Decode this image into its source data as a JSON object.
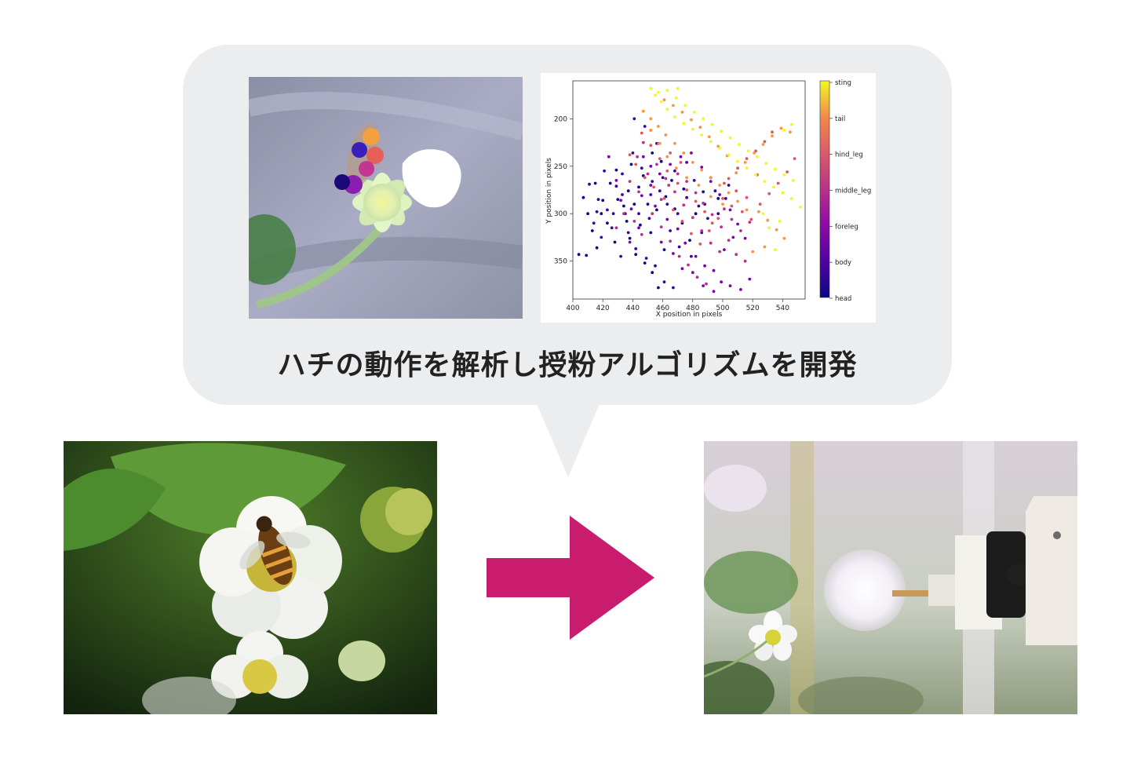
{
  "caption": "ハチの動作を解析し授粉アルゴリズムを開発",
  "colors": {
    "bubble": "#ecedee",
    "arrow": "#c91c6f"
  },
  "chart_data": {
    "type": "scatter",
    "xlabel": "X position in pixels",
    "ylabel": "Y position in pixels",
    "xlim": [
      400,
      555
    ],
    "ylim": [
      390,
      160
    ],
    "xticks": [
      400,
      420,
      440,
      460,
      480,
      500,
      520,
      540
    ],
    "yticks": [
      200,
      250,
      300,
      350
    ],
    "colorbar": {
      "colormap": "plasma",
      "labels": [
        "head",
        "body",
        "foreleg",
        "middle_leg",
        "hind_leg",
        "tail",
        "sting"
      ]
    },
    "series": [
      {
        "name": "head",
        "points": [
          [
            407,
            283
          ],
          [
            410,
            300
          ],
          [
            413,
            318
          ],
          [
            419,
            300
          ],
          [
            425,
            268
          ],
          [
            430,
            285
          ],
          [
            436,
            308
          ],
          [
            438,
            326
          ],
          [
            442,
            343
          ],
          [
            448,
            352
          ],
          [
            453,
            362
          ],
          [
            457,
            378
          ],
          [
            439,
            248
          ],
          [
            444,
            272
          ],
          [
            450,
            290
          ],
          [
            456,
            296
          ],
          [
            462,
            282
          ],
          [
            468,
            295
          ],
          [
            473,
            310
          ],
          [
            478,
            328
          ],
          [
            482,
            300
          ],
          [
            487,
            277
          ],
          [
            453,
            236
          ],
          [
            459,
            245
          ],
          [
            447,
            260
          ],
          [
            434,
            292
          ],
          [
            423,
            310
          ],
          [
            416,
            336
          ],
          [
            409,
            344
          ],
          [
            428,
            330
          ],
          [
            441,
            290
          ],
          [
            466,
            265
          ],
          [
            492,
            262
          ],
          [
            497,
            284
          ],
          [
            474,
            274
          ],
          [
            429,
            254
          ],
          [
            452,
            320
          ],
          [
            461,
            338
          ],
          [
            445,
            312
          ],
          [
            437,
            276
          ],
          [
            420,
            286
          ],
          [
            415,
            268
          ],
          [
            404,
            343
          ]
        ]
      },
      {
        "name": "body",
        "points": [
          [
            411,
            269
          ],
          [
            417,
            285
          ],
          [
            423,
            296
          ],
          [
            429,
            271
          ],
          [
            433,
            258
          ],
          [
            440,
            236
          ],
          [
            446,
            252
          ],
          [
            453,
            266
          ],
          [
            458,
            276
          ],
          [
            463,
            290
          ],
          [
            470,
            300
          ],
          [
            476,
            283
          ],
          [
            484,
            292
          ],
          [
            490,
            305
          ],
          [
            497,
            300
          ],
          [
            502,
            284
          ],
          [
            437,
            320
          ],
          [
            442,
            337
          ],
          [
            449,
            347
          ],
          [
            455,
            355
          ],
          [
            461,
            372
          ],
          [
            467,
            378
          ],
          [
            426,
            315
          ],
          [
            419,
            325
          ],
          [
            414,
            310
          ],
          [
            432,
            345
          ],
          [
            435,
            300
          ],
          [
            444,
            300
          ],
          [
            451,
            305
          ],
          [
            465,
            318
          ],
          [
            471,
            335
          ],
          [
            479,
            345
          ],
          [
            486,
            320
          ],
          [
            495,
            276
          ],
          [
            504,
            270
          ],
          [
            456,
            226
          ],
          [
            448,
            208
          ],
          [
            441,
            200
          ],
          [
            452,
            280
          ],
          [
            460,
            262
          ],
          [
            468,
            255
          ],
          [
            476,
            246
          ],
          [
            481,
            265
          ],
          [
            488,
            290
          ],
          [
            433,
            280
          ],
          [
            427,
            300
          ],
          [
            421,
            255
          ],
          [
            416,
            298
          ]
        ]
      },
      {
        "name": "foreleg",
        "points": [
          [
            432,
            286
          ],
          [
            439,
            295
          ],
          [
            446,
            281
          ],
          [
            455,
            292
          ],
          [
            463,
            306
          ],
          [
            470,
            316
          ],
          [
            475,
            331
          ],
          [
            482,
            345
          ],
          [
            488,
            355
          ],
          [
            494,
            360
          ],
          [
            499,
            372
          ],
          [
            505,
            376
          ],
          [
            512,
            380
          ],
          [
            518,
            369
          ],
          [
            452,
            270
          ],
          [
            458,
            258
          ],
          [
            465,
            248
          ],
          [
            472,
            240
          ],
          [
            479,
            236
          ],
          [
            486,
            251
          ],
          [
            492,
            266
          ],
          [
            498,
            280
          ],
          [
            505,
            296
          ],
          [
            510,
            311
          ],
          [
            515,
            326
          ],
          [
            444,
            315
          ],
          [
            438,
            330
          ],
          [
            429,
            265
          ],
          [
            424,
            240
          ],
          [
            459,
            330
          ],
          [
            467,
            342
          ],
          [
            473,
            358
          ],
          [
            480,
            362
          ],
          [
            487,
            376
          ],
          [
            494,
            382
          ],
          [
            501,
            338
          ],
          [
            507,
            325
          ],
          [
            447,
            240
          ],
          [
            452,
            250
          ]
        ]
      },
      {
        "name": "middle_leg",
        "points": [
          [
            438,
            266
          ],
          [
            444,
            277
          ],
          [
            450,
            258
          ],
          [
            456,
            248
          ],
          [
            462,
            263
          ],
          [
            468,
            277
          ],
          [
            474,
            291
          ],
          [
            480,
            304
          ],
          [
            486,
            318
          ],
          [
            492,
            331
          ],
          [
            498,
            340
          ],
          [
            453,
            300
          ],
          [
            459,
            314
          ],
          [
            465,
            329
          ],
          [
            471,
            345
          ],
          [
            477,
            354
          ],
          [
            483,
            367
          ],
          [
            489,
            374
          ],
          [
            443,
            240
          ],
          [
            447,
            225
          ],
          [
            452,
            212
          ],
          [
            441,
            308
          ],
          [
            446,
            322
          ],
          [
            501,
            295
          ],
          [
            506,
            306
          ],
          [
            512,
            318
          ],
          [
            518,
            309
          ],
          [
            470,
            258
          ],
          [
            476,
            266
          ],
          [
            482,
            278
          ],
          [
            459,
            285
          ],
          [
            464,
            270
          ],
          [
            434,
            300
          ],
          [
            429,
            315
          ],
          [
            487,
            289
          ],
          [
            493,
            301
          ],
          [
            499,
            314
          ],
          [
            504,
            328
          ],
          [
            509,
            343
          ],
          [
            515,
            350
          ]
        ]
      },
      {
        "name": "hind_leg",
        "points": [
          [
            446,
            215
          ],
          [
            452,
            228
          ],
          [
            458,
            242
          ],
          [
            463,
            255
          ],
          [
            470,
            268
          ],
          [
            476,
            275
          ],
          [
            482,
            287
          ],
          [
            488,
            298
          ],
          [
            493,
            310
          ],
          [
            500,
            284
          ],
          [
            506,
            292
          ],
          [
            513,
            298
          ],
          [
            519,
            306
          ],
          [
            525,
            290
          ],
          [
            531,
            279
          ],
          [
            537,
            268
          ],
          [
            543,
            256
          ],
          [
            548,
            242
          ],
          [
            454,
            272
          ],
          [
            461,
            284
          ],
          [
            467,
            296
          ],
          [
            473,
            308
          ],
          [
            479,
            321
          ],
          [
            485,
            332
          ],
          [
            491,
            318
          ],
          [
            497,
            305
          ],
          [
            504,
            263
          ],
          [
            510,
            252
          ],
          [
            516,
            242
          ],
          [
            522,
            234
          ],
          [
            528,
            224
          ],
          [
            533,
            214
          ],
          [
            448,
            262
          ],
          [
            442,
            248
          ],
          [
            438,
            238
          ],
          [
            457,
            226
          ],
          [
            465,
            236
          ],
          [
            472,
            246
          ],
          [
            501,
            268
          ],
          [
            509,
            276
          ],
          [
            516,
            283
          ],
          [
            523,
            259
          ]
        ]
      },
      {
        "name": "tail",
        "points": [
          [
            447,
            192
          ],
          [
            452,
            200
          ],
          [
            457,
            208
          ],
          [
            462,
            217
          ],
          [
            468,
            226
          ],
          [
            474,
            236
          ],
          [
            480,
            246
          ],
          [
            486,
            254
          ],
          [
            492,
            262
          ],
          [
            498,
            270
          ],
          [
            504,
            278
          ],
          [
            510,
            287
          ],
          [
            516,
            296
          ],
          [
            452,
            212
          ],
          [
            458,
            226
          ],
          [
            463,
            240
          ],
          [
            469,
            252
          ],
          [
            476,
            262
          ],
          [
            484,
            270
          ],
          [
            492,
            282
          ],
          [
            500,
            290
          ],
          [
            509,
            257
          ],
          [
            515,
            246
          ],
          [
            521,
            236
          ],
          [
            527,
            227
          ],
          [
            533,
            218
          ],
          [
            539,
            210
          ],
          [
            545,
            214
          ],
          [
            503,
            239
          ],
          [
            497,
            229
          ],
          [
            491,
            219
          ],
          [
            485,
            209
          ],
          [
            479,
            201
          ],
          [
            473,
            193
          ],
          [
            467,
            186
          ],
          [
            461,
            180
          ],
          [
            524,
            298
          ],
          [
            530,
            307
          ],
          [
            536,
            317
          ],
          [
            541,
            326
          ],
          [
            528,
            335
          ],
          [
            520,
            340
          ]
        ]
      },
      {
        "name": "sting",
        "points": [
          [
            455,
            175
          ],
          [
            459,
            182
          ],
          [
            463,
            190
          ],
          [
            468,
            198
          ],
          [
            474,
            205
          ],
          [
            480,
            211
          ],
          [
            486,
            217
          ],
          [
            492,
            224
          ],
          [
            498,
            231
          ],
          [
            504,
            238
          ],
          [
            510,
            245
          ],
          [
            516,
            252
          ],
          [
            522,
            259
          ],
          [
            528,
            266
          ],
          [
            534,
            272
          ],
          [
            540,
            278
          ],
          [
            546,
            284
          ],
          [
            552,
            293
          ],
          [
            463,
            170
          ],
          [
            469,
            178
          ],
          [
            475,
            186
          ],
          [
            481,
            193
          ],
          [
            487,
            200
          ],
          [
            493,
            206
          ],
          [
            499,
            213
          ],
          [
            505,
            220
          ],
          [
            511,
            227
          ],
          [
            517,
            234
          ],
          [
            523,
            240
          ],
          [
            529,
            247
          ],
          [
            535,
            253
          ],
          [
            541,
            259
          ],
          [
            547,
            265
          ],
          [
            452,
            168
          ],
          [
            457,
            172
          ],
          [
            470,
            168
          ],
          [
            531,
            315
          ],
          [
            535,
            338
          ],
          [
            538,
            308
          ],
          [
            541,
            212
          ],
          [
            546,
            206
          ],
          [
            527,
            300
          ]
        ]
      }
    ]
  }
}
